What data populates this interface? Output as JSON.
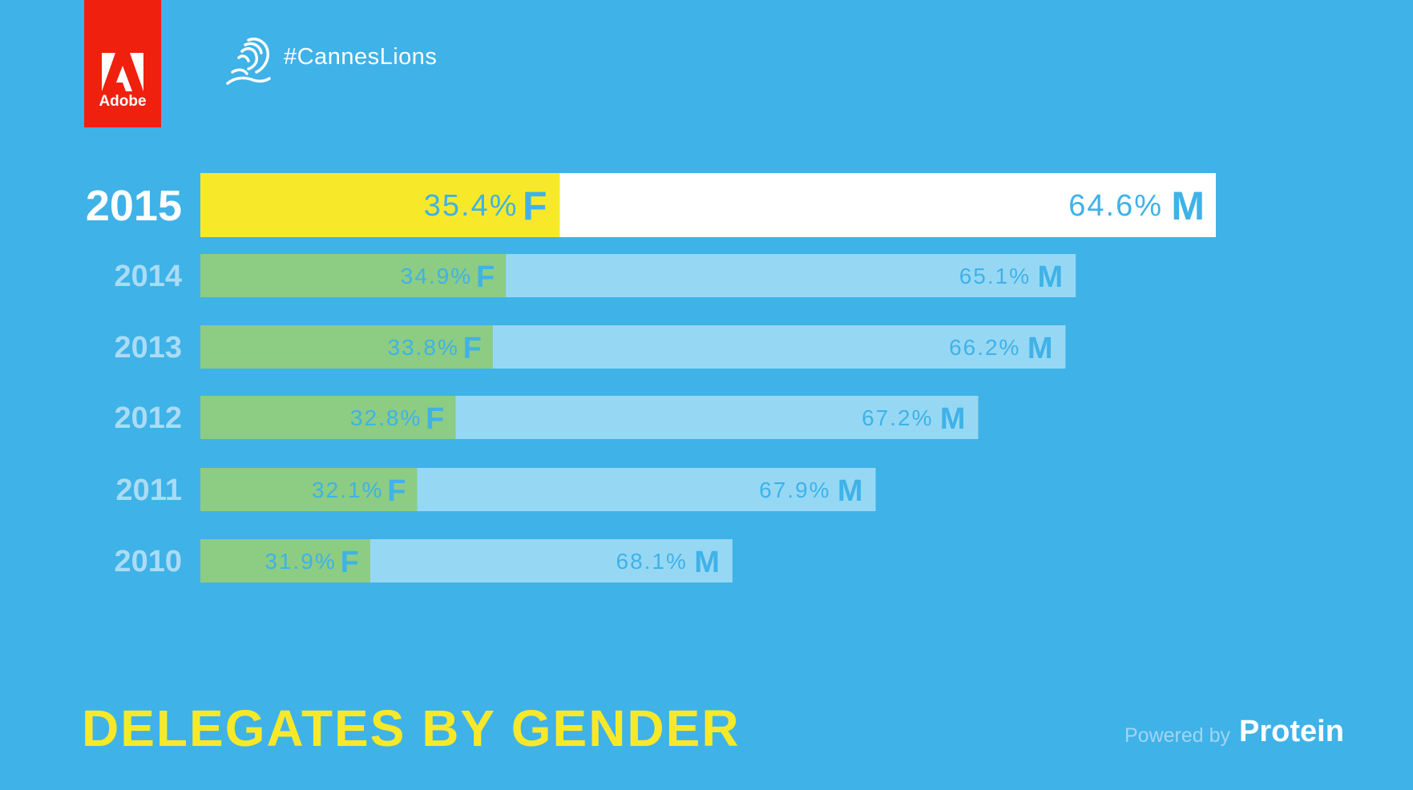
{
  "header": {
    "brand": "Adobe",
    "hashtag": "#CannesLions"
  },
  "colors": {
    "background": "#3fb2e8",
    "female_highlight": "#f7e92a",
    "male_highlight": "#ffffff",
    "female": "#8dcc83",
    "male": "#96d8f4",
    "label": "#3fb2e8",
    "year_highlight": "#ffffff",
    "year": "#aadcf5",
    "adobe_red": "#f0200f"
  },
  "chart_data": {
    "type": "bar",
    "orientation": "horizontal",
    "stacked": true,
    "title": "DELEGATES BY GENDER",
    "highlight_category": "2015",
    "categories": [
      "2015",
      "2014",
      "2013",
      "2012",
      "2011",
      "2010"
    ],
    "series": [
      {
        "name": "F",
        "values": [
          35.4,
          34.9,
          33.8,
          32.8,
          32.1,
          31.9
        ],
        "labels": [
          "35.4%",
          "34.9%",
          "33.8%",
          "32.8%",
          "32.1%",
          "31.9%"
        ]
      },
      {
        "name": "M",
        "values": [
          64.6,
          65.1,
          66.2,
          67.2,
          67.9,
          68.1
        ],
        "labels": [
          "64.6%",
          "65.1%",
          "66.2%",
          "67.2%",
          "67.9%",
          "68.1%"
        ]
      }
    ],
    "relative_totals": [
      1.0,
      0.862,
      0.852,
      0.766,
      0.665,
      0.524
    ]
  },
  "footer": {
    "powered_by": "Powered by",
    "brand": "Protein"
  }
}
